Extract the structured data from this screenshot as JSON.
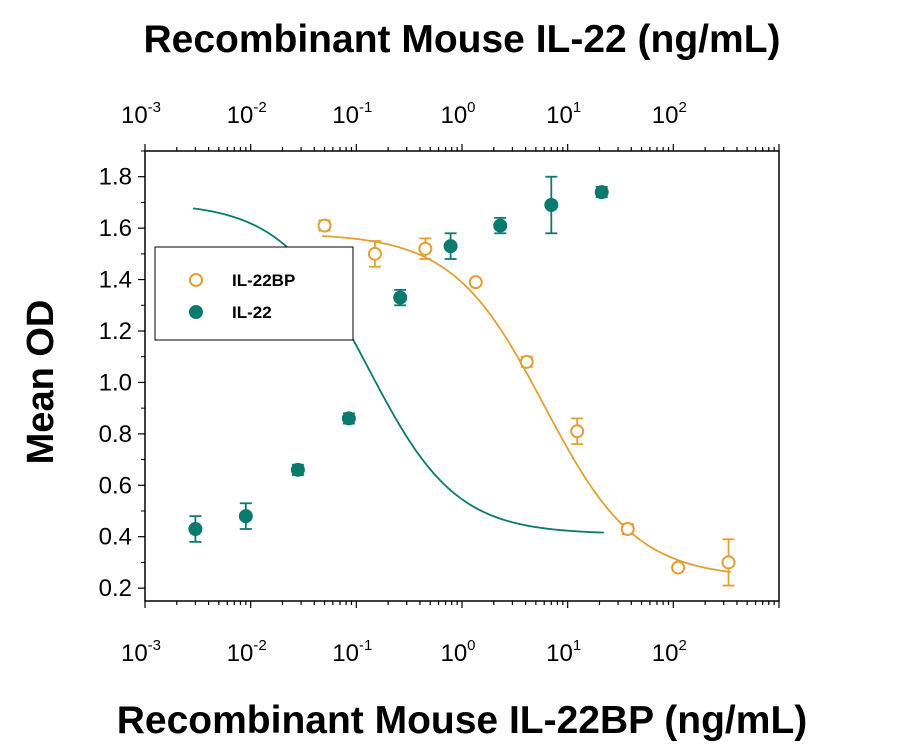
{
  "chart_data": {
    "type": "scatter",
    "title": "Recombinant Mouse IL-22 (ng/mL)",
    "xlabel": "Recombinant Mouse IL-22BP (ng/mL)",
    "ylabel": "Mean OD",
    "x_scale": "log",
    "xlim": [
      0.001,
      1000
    ],
    "ylim": [
      0.15,
      1.9
    ],
    "x_tick_labels": [
      {
        "base": "10",
        "exp": "-3"
      },
      {
        "base": "10",
        "exp": "-2"
      },
      {
        "base": "10",
        "exp": "-1"
      },
      {
        "base": "10",
        "exp": "0"
      },
      {
        "base": "10",
        "exp": "1"
      },
      {
        "base": "10",
        "exp": "2"
      }
    ],
    "y_ticks": [
      "0.2",
      "0.4",
      "0.6",
      "0.8",
      "1.0",
      "1.2",
      "1.4",
      "1.6",
      "1.8"
    ],
    "grid": false,
    "legend_position": "upper-left",
    "series": [
      {
        "name": "IL-22BP",
        "axis": "bottom",
        "marker": "open-circle",
        "color": "#E2A032",
        "x": [
          0.05,
          0.15,
          0.45,
          1.35,
          4.1,
          12.3,
          37,
          111,
          333
        ],
        "y": [
          1.61,
          1.5,
          1.52,
          1.39,
          1.08,
          0.81,
          0.43,
          0.28,
          0.3
        ],
        "error": [
          0.02,
          0.05,
          0.04,
          0.01,
          0.02,
          0.05,
          0.02,
          0.01,
          0.09
        ],
        "fit": {
          "top": 1.58,
          "bottom": 0.24,
          "ec50": 6.0,
          "hill": 1.0
        }
      },
      {
        "name": "IL-22",
        "axis": "top",
        "marker": "filled-circle",
        "color": "#0A7A6E",
        "x": [
          0.003,
          0.009,
          0.028,
          0.085,
          0.26,
          0.78,
          2.3,
          7.0,
          21
        ],
        "y": [
          0.43,
          0.48,
          0.66,
          0.86,
          1.33,
          1.53,
          1.61,
          1.69,
          1.74
        ],
        "error": [
          0.05,
          0.05,
          0.02,
          0.02,
          0.03,
          0.05,
          0.03,
          0.11,
          0.02
        ],
        "fit": {
          "top": 1.7,
          "bottom": 0.41,
          "ec50": 0.13,
          "hill": 1.05
        }
      }
    ]
  }
}
